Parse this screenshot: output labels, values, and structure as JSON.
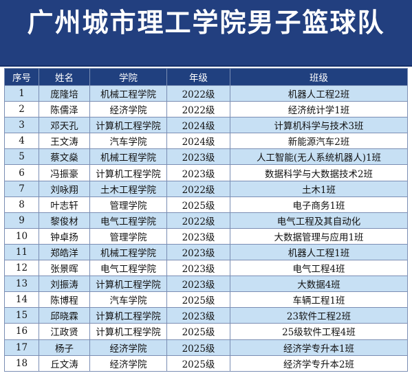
{
  "title": "广州城市理工学院男子篮球队",
  "columns": {
    "no": "序号",
    "name": "姓名",
    "college": "学院",
    "grade": "年级",
    "class": "班级"
  },
  "rows": [
    {
      "no": "1",
      "name": "庞隆培",
      "college": "机械工程学院",
      "grade": "2022级",
      "class": "机器人工程2班"
    },
    {
      "no": "2",
      "name": "陈儒泽",
      "college": "经济学院",
      "grade": "2022级",
      "class": "经济统计学1班"
    },
    {
      "no": "3",
      "name": "邓天孔",
      "college": "计算机工程学院",
      "grade": "2024级",
      "class": "计算机科学与技术3班"
    },
    {
      "no": "4",
      "name": "王文涛",
      "college": "汽车学院",
      "grade": "2024级",
      "class": "新能源汽车2班"
    },
    {
      "no": "5",
      "name": "蔡文燊",
      "college": "机械工程学院",
      "grade": "2023级",
      "class": "人工智能(无人系统机器人)1班"
    },
    {
      "no": "6",
      "name": "冯振豪",
      "college": "计算机工程学院",
      "grade": "2023级",
      "class": "数据科学与大数据技术2班"
    },
    {
      "no": "7",
      "name": "刘咏翔",
      "college": "土木工程学院",
      "grade": "2022级",
      "class": "土木1班"
    },
    {
      "no": "8",
      "name": "叶志轩",
      "college": "管理学院",
      "grade": "2025级",
      "class": "电子商务1班"
    },
    {
      "no": "9",
      "name": "黎俊材",
      "college": "电气工程学院",
      "grade": "2022级",
      "class": "电气工程及其自动化"
    },
    {
      "no": "10",
      "name": "钟卓扬",
      "college": "管理学院",
      "grade": "2023级",
      "class": "大数据管理与应用1班"
    },
    {
      "no": "11",
      "name": "郑皓洋",
      "college": "机械工程学院",
      "grade": "2023级",
      "class": "机器人工程1班"
    },
    {
      "no": "12",
      "name": "张景晖",
      "college": "电气工程学院",
      "grade": "2023级",
      "class": "电气工程4班"
    },
    {
      "no": "13",
      "name": "刘振涛",
      "college": "计算机工程学院",
      "grade": "2023级",
      "class": "大数据4班"
    },
    {
      "no": "14",
      "name": "陈博程",
      "college": "汽车学院",
      "grade": "2025级",
      "class": "车辆工程1班"
    },
    {
      "no": "15",
      "name": "邱晓霖",
      "college": "计算机工程学院",
      "grade": "2023级",
      "class": "23软件工程2班"
    },
    {
      "no": "16",
      "name": "江政贤",
      "college": "计算机工程学院",
      "grade": "2025级",
      "class": "25级软件工程4班"
    },
    {
      "no": "17",
      "name": "杨子",
      "college": "经济学院",
      "grade": "2025级",
      "class": "经济学专升本1班"
    },
    {
      "no": "18",
      "name": "丘文涛",
      "college": "经济学院",
      "grade": "2025级",
      "class": "经济学专升本2班"
    }
  ]
}
